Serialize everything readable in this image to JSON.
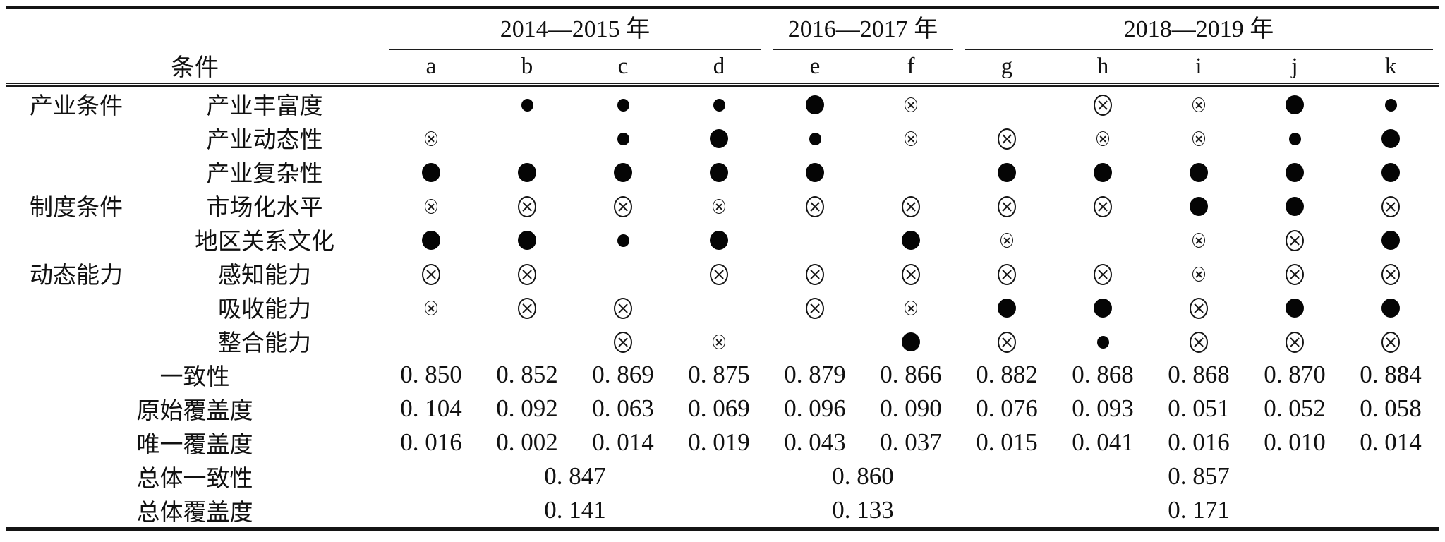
{
  "table": {
    "header": {
      "condition_label": "条件",
      "year_groups": [
        {
          "label": "2014—2015 年",
          "span": 4
        },
        {
          "label": "2016—2017 年",
          "span": 2
        },
        {
          "label": "2018—2019 年",
          "span": 5
        }
      ],
      "solution_columns": [
        "a",
        "b",
        "c",
        "d",
        "e",
        "f",
        "g",
        "h",
        "i",
        "j",
        "k"
      ]
    },
    "symbols": {
      "dot-lg": "large-filled-circle-icon",
      "dot-sm": "small-filled-circle-icon",
      "ox-lg": "large-crossed-circle-icon",
      "ox-sm": "small-crossed-circle-icon"
    },
    "condition_rows": [
      {
        "group": "产业条件",
        "condition": "产业丰富度",
        "cells": [
          "",
          "dot-sm",
          "dot-sm",
          "dot-sm",
          "dot-lg",
          "ox-sm",
          "",
          "ox-lg",
          "ox-sm",
          "dot-lg",
          "dot-sm"
        ]
      },
      {
        "group": "",
        "condition": "产业动态性",
        "cells": [
          "ox-sm",
          "",
          "dot-sm",
          "dot-lg",
          "dot-sm",
          "ox-sm",
          "ox-lg",
          "ox-sm",
          "ox-sm",
          "dot-sm",
          "dot-lg"
        ]
      },
      {
        "group": "",
        "condition": "产业复杂性",
        "cells": [
          "dot-lg",
          "dot-lg",
          "dot-lg",
          "dot-lg",
          "dot-lg",
          "",
          "dot-lg",
          "dot-lg",
          "dot-lg",
          "dot-lg",
          "dot-lg"
        ]
      },
      {
        "group": "制度条件",
        "condition": "市场化水平",
        "cells": [
          "ox-sm",
          "ox-lg",
          "ox-lg",
          "ox-sm",
          "ox-lg",
          "ox-lg",
          "ox-lg",
          "ox-lg",
          "dot-lg",
          "dot-lg",
          "ox-lg"
        ]
      },
      {
        "group": "",
        "condition": "地区关系文化",
        "cells": [
          "dot-lg",
          "dot-lg",
          "dot-sm",
          "dot-lg",
          "",
          "dot-lg",
          "ox-sm",
          "",
          "ox-sm",
          "ox-lg",
          "dot-lg"
        ]
      },
      {
        "group": "动态能力",
        "condition": "感知能力",
        "cells": [
          "ox-lg",
          "ox-lg",
          "",
          "ox-lg",
          "ox-lg",
          "ox-lg",
          "ox-lg",
          "ox-lg",
          "ox-sm",
          "ox-lg",
          "ox-lg"
        ]
      },
      {
        "group": "",
        "condition": "吸收能力",
        "cells": [
          "ox-sm",
          "ox-lg",
          "ox-lg",
          "",
          "ox-lg",
          "ox-sm",
          "dot-lg",
          "dot-lg",
          "ox-lg",
          "dot-lg",
          "dot-lg"
        ]
      },
      {
        "group": "",
        "condition": "整合能力",
        "cells": [
          "",
          "",
          "ox-lg",
          "ox-sm",
          "",
          "dot-lg",
          "ox-lg",
          "dot-sm",
          "ox-lg",
          "ox-lg",
          "ox-lg"
        ]
      }
    ],
    "metric_rows": [
      {
        "label": "一致性",
        "values": [
          "0. 850",
          "0. 852",
          "0. 869",
          "0. 875",
          "0. 879",
          "0. 866",
          "0. 882",
          "0. 868",
          "0. 868",
          "0. 870",
          "0. 884"
        ]
      },
      {
        "label": "原始覆盖度",
        "values": [
          "0. 104",
          "0. 092",
          "0. 063",
          "0. 069",
          "0. 096",
          "0. 090",
          "0. 076",
          "0. 093",
          "0. 051",
          "0. 052",
          "0. 058"
        ]
      },
      {
        "label": "唯一覆盖度",
        "values": [
          "0. 016",
          "0. 002",
          "0. 014",
          "0. 019",
          "0. 043",
          "0. 037",
          "0. 015",
          "0. 041",
          "0. 016",
          "0. 010",
          "0. 014"
        ]
      }
    ],
    "overall_rows": [
      {
        "label": "总体一致性",
        "values": [
          "0. 847",
          "0. 860",
          "0. 857"
        ]
      },
      {
        "label": "总体覆盖度",
        "values": [
          "0. 141",
          "0. 133",
          "0. 171"
        ]
      }
    ]
  }
}
